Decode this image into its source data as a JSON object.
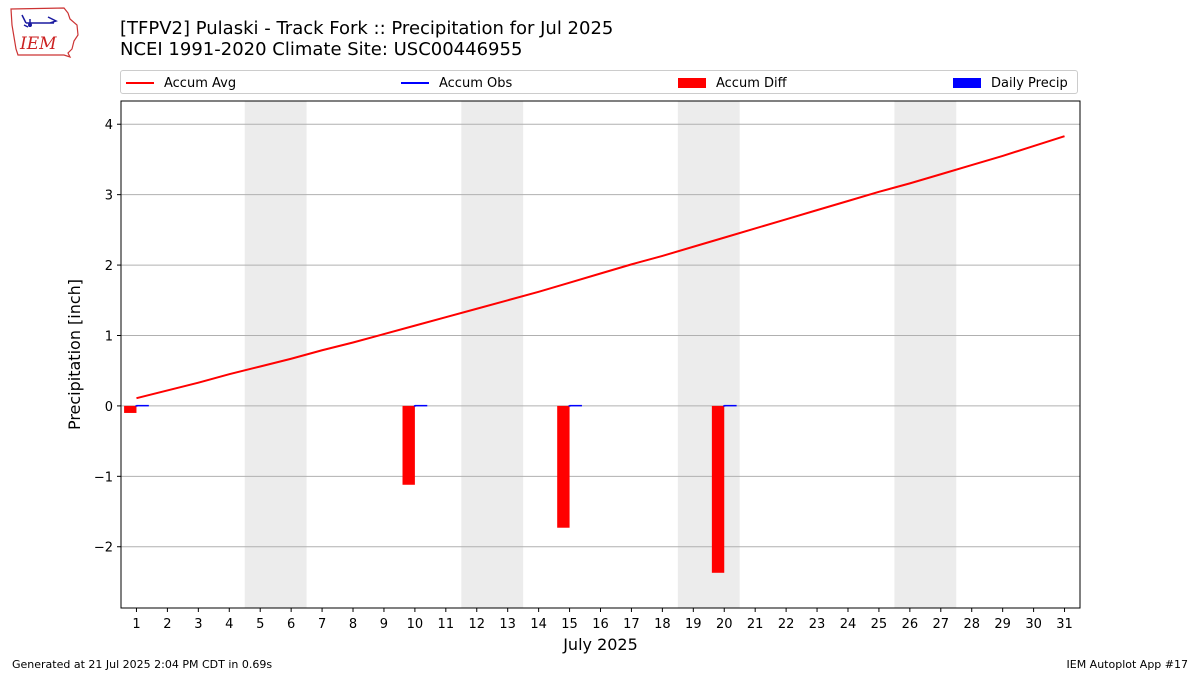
{
  "title_line1": "[TFPV2] Pulaski - Track Fork :: Precipitation for Jul 2025",
  "title_line2": "NCEI 1991-2020 Climate Site: USC00446955",
  "logo_text": "IEM",
  "footer_left": "Generated at 21 Jul 2025 2:04 PM CDT in 0.69s",
  "footer_right": "IEM Autoplot App #17",
  "colors": {
    "avg": "#ff0000",
    "obs": "#0000ff",
    "diff": "#ff0000",
    "daily": "#0000ff",
    "weekend": "#ececec"
  },
  "chart_data": {
    "type": "bar",
    "xlabel": "July 2025",
    "ylabel": "Precipitation [inch]",
    "xlim": [
      0.5,
      31.5
    ],
    "ylim": [
      -2.87,
      4.33
    ],
    "yticks": [
      -2,
      -1,
      0,
      1,
      2,
      3,
      4
    ],
    "ytick_labels": [
      "−2",
      "−1",
      "0",
      "1",
      "2",
      "3",
      "4"
    ],
    "grid": "horizontal",
    "legend_placement": "top",
    "weekend_shading": [
      [
        5,
        6
      ],
      [
        12,
        13
      ],
      [
        19,
        20
      ],
      [
        26,
        27
      ]
    ],
    "categories": [
      1,
      2,
      3,
      4,
      5,
      6,
      7,
      8,
      9,
      10,
      11,
      12,
      13,
      14,
      15,
      16,
      17,
      18,
      19,
      20,
      21,
      22,
      23,
      24,
      25,
      26,
      27,
      28,
      29,
      30,
      31
    ],
    "x_tick_labels": [
      "1",
      "2",
      "3",
      "4",
      "5",
      "6",
      "7",
      "8",
      "9",
      "10",
      "11",
      "12",
      "13",
      "14",
      "15",
      "16",
      "17",
      "18",
      "19",
      "20",
      "21",
      "22",
      "23",
      "24",
      "25",
      "26",
      "27",
      "28",
      "29",
      "30",
      "31"
    ],
    "series": [
      {
        "name": "Accum Avg",
        "kind": "line",
        "values": [
          0.11,
          0.22,
          0.33,
          0.45,
          0.56,
          0.67,
          0.79,
          0.9,
          1.02,
          1.14,
          1.26,
          1.38,
          1.5,
          1.62,
          1.75,
          1.88,
          2.01,
          2.13,
          2.26,
          2.39,
          2.52,
          2.65,
          2.78,
          2.91,
          3.04,
          3.16,
          3.29,
          3.42,
          3.55,
          3.69,
          3.83
        ]
      },
      {
        "name": "Accum Obs",
        "kind": "line",
        "values": [
          0.0,
          null,
          null,
          null,
          null,
          null,
          null,
          null,
          null,
          0.0,
          null,
          null,
          null,
          null,
          0.0,
          null,
          null,
          null,
          null,
          0.0,
          null,
          null,
          null,
          null,
          null,
          null,
          null,
          null,
          null,
          null,
          null
        ]
      },
      {
        "name": "Accum Diff",
        "kind": "bar",
        "values": [
          -0.1,
          null,
          null,
          null,
          null,
          null,
          null,
          null,
          null,
          -1.12,
          null,
          null,
          null,
          null,
          -1.73,
          null,
          null,
          null,
          null,
          -2.37,
          null,
          null,
          null,
          null,
          null,
          null,
          null,
          null,
          null,
          null,
          null
        ]
      },
      {
        "name": "Daily Precip",
        "kind": "bar",
        "values": [
          0.0,
          null,
          null,
          null,
          null,
          null,
          null,
          null,
          null,
          0.0,
          null,
          null,
          null,
          null,
          0.0,
          null,
          null,
          null,
          null,
          0.0,
          null,
          null,
          null,
          null,
          null,
          null,
          null,
          null,
          null,
          null,
          null
        ]
      }
    ]
  }
}
